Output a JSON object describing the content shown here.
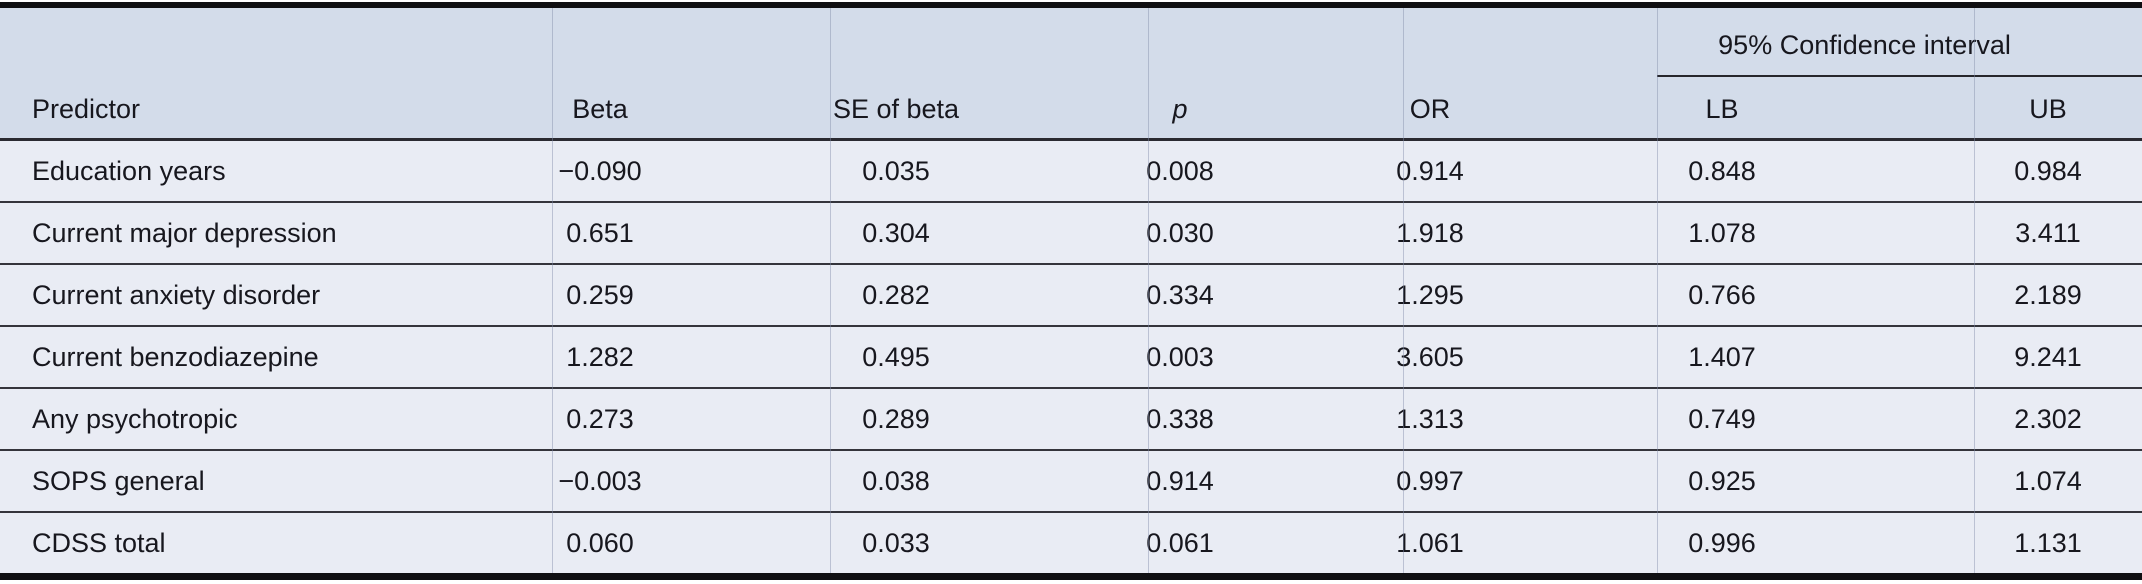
{
  "table": {
    "ci_group_label": "95% Confidence interval",
    "columns": [
      {
        "key": "predictor",
        "label": "Predictor"
      },
      {
        "key": "beta",
        "label": "Beta"
      },
      {
        "key": "se",
        "label": "SE of beta"
      },
      {
        "key": "p",
        "label": "p"
      },
      {
        "key": "or",
        "label": "OR"
      },
      {
        "key": "lb",
        "label": "LB"
      },
      {
        "key": "ub",
        "label": "UB"
      }
    ],
    "rows": [
      {
        "predictor": "Education years",
        "beta": "−0.090",
        "se": "0.035",
        "p": "0.008",
        "or": "0.914",
        "lb": "0.848",
        "ub": "0.984"
      },
      {
        "predictor": "Current major depression",
        "beta": "0.651",
        "se": "0.304",
        "p": "0.030",
        "or": "1.918",
        "lb": "1.078",
        "ub": "3.411"
      },
      {
        "predictor": "Current anxiety disorder",
        "beta": "0.259",
        "se": "0.282",
        "p": "0.334",
        "or": "1.295",
        "lb": "0.766",
        "ub": "2.189"
      },
      {
        "predictor": "Current benzodiazepine",
        "beta": "1.282",
        "se": "0.495",
        "p": "0.003",
        "or": "3.605",
        "lb": "1.407",
        "ub": "9.241"
      },
      {
        "predictor": "Any psychotropic",
        "beta": "0.273",
        "se": "0.289",
        "p": "0.338",
        "or": "1.313",
        "lb": "0.749",
        "ub": "2.302"
      },
      {
        "predictor": "SOPS general",
        "beta": "−0.003",
        "se": "0.038",
        "p": "0.914",
        "or": "0.997",
        "lb": "0.925",
        "ub": "1.074"
      },
      {
        "predictor": "CDSS total",
        "beta": "0.060",
        "se": "0.033",
        "p": "0.061",
        "or": "1.061",
        "lb": "0.996",
        "ub": "1.131"
      }
    ],
    "colors": {
      "header_bg": "#d3dcea",
      "body_bg": "#e9ecf4",
      "heavy_rule": "#0f0f12",
      "row_rule": "#34343b",
      "cell_divider": "#aeb6ca"
    },
    "divider_x_positions": [
      552,
      830,
      1148,
      1403,
      1657,
      1974
    ]
  }
}
